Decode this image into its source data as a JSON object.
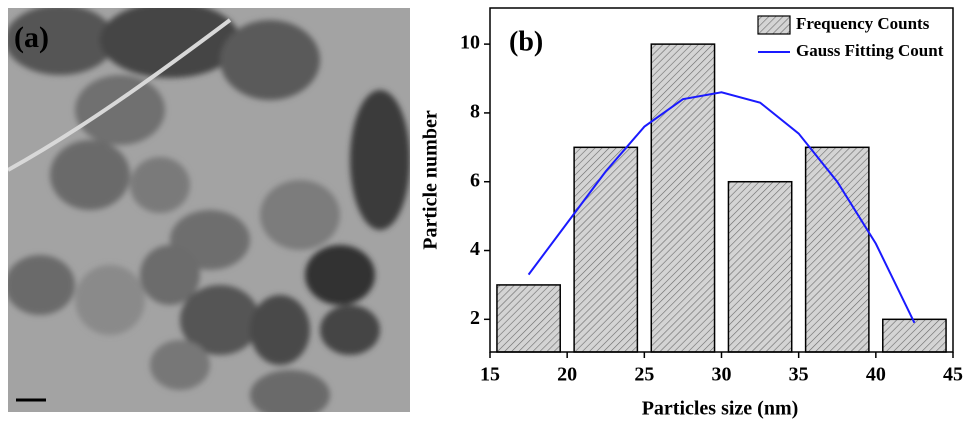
{
  "panel_a": {
    "label": "(a)"
  },
  "chart_data": {
    "type": "histogram",
    "label": "(b)",
    "xlabel": "Particles size (nm)",
    "ylabel": "Particle number",
    "bins": [
      15,
      20,
      25,
      30,
      35,
      40,
      45
    ],
    "series": [
      {
        "name": "Frequency Counts",
        "color": "#c8c8c8",
        "values": [
          3,
          7,
          10,
          6,
          7,
          2
        ]
      },
      {
        "name": "Gauss Fitting Count",
        "type": "line",
        "color": "#1a1aff",
        "x": [
          17.5,
          20,
          22.5,
          25,
          27.5,
          30,
          32.5,
          35,
          37.5,
          40,
          42.5
        ],
        "values": [
          3.3,
          4.8,
          6.3,
          7.6,
          8.4,
          8.6,
          8.3,
          7.4,
          6.0,
          4.2,
          1.9
        ]
      }
    ],
    "xlim": [
      15,
      45
    ],
    "xticks": [
      15,
      20,
      25,
      30,
      35,
      40,
      45
    ],
    "ylim": [
      1.05,
      11.05
    ],
    "yticks": [
      2,
      4,
      6,
      8,
      10
    ],
    "legend": "upper right"
  }
}
